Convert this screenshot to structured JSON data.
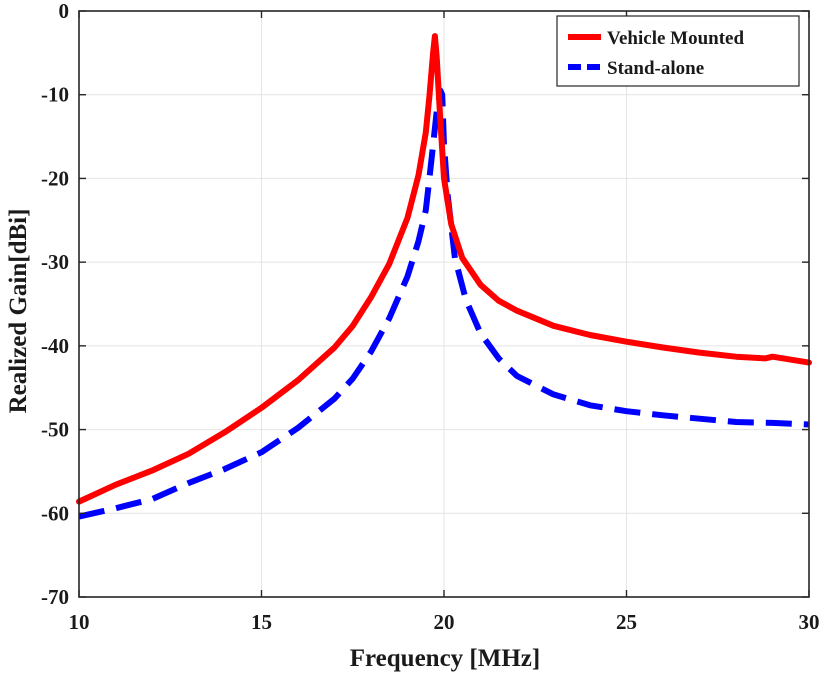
{
  "chart_data": {
    "type": "line",
    "xlabel": "Frequency [MHz]",
    "ylabel": "Realized Gain[dBi]",
    "xlim": [
      10,
      30
    ],
    "ylim": [
      -70,
      0
    ],
    "xticks": [
      10,
      15,
      20,
      25,
      30
    ],
    "yticks": [
      0,
      -10,
      -20,
      -30,
      -40,
      -50,
      -60,
      -70
    ],
    "xtick_labels": [
      "10",
      "15",
      "20",
      "25",
      "30"
    ],
    "ytick_labels": [
      "0",
      "-10",
      "-20",
      "-30",
      "-40",
      "-50",
      "-60",
      "-70"
    ],
    "grid": true,
    "legend_position": "top-right",
    "series": [
      {
        "name": "Vehicle Mounted",
        "color": "#ff0000",
        "style": "solid",
        "x": [
          10,
          11,
          12,
          13,
          14,
          15,
          16,
          17,
          17.5,
          18,
          18.5,
          19,
          19.3,
          19.5,
          19.6,
          19.7,
          19.75,
          19.8,
          19.9,
          20,
          20.2,
          20.5,
          21,
          21.5,
          22,
          23,
          24,
          25,
          26,
          27,
          28,
          28.8,
          29,
          30
        ],
        "y": [
          -58.6,
          -56.6,
          -54.9,
          -52.9,
          -50.3,
          -47.4,
          -44.1,
          -40.2,
          -37.6,
          -34.2,
          -30.2,
          -24.7,
          -19.6,
          -14.5,
          -10.2,
          -5.0,
          -3.0,
          -5.5,
          -13.0,
          -20.0,
          -25.5,
          -29.5,
          -32.7,
          -34.6,
          -35.8,
          -37.6,
          -38.7,
          -39.5,
          -40.2,
          -40.8,
          -41.3,
          -41.5,
          -41.3,
          -42.0
        ]
      },
      {
        "name": "Stand-alone",
        "color": "#0000ff",
        "style": "dashed",
        "x": [
          10,
          11,
          12,
          13,
          14,
          15,
          16,
          17,
          17.5,
          18,
          18.5,
          19,
          19.3,
          19.5,
          19.6,
          19.7,
          19.8,
          19.9,
          19.95,
          20,
          20.1,
          20.3,
          20.6,
          21,
          21.5,
          22,
          23,
          24,
          25,
          26,
          27,
          28,
          29,
          30
        ],
        "y": [
          -60.4,
          -59.4,
          -58.3,
          -56.4,
          -54.7,
          -52.7,
          -49.8,
          -46.3,
          -43.9,
          -40.7,
          -36.7,
          -31.7,
          -27.5,
          -23.8,
          -20.0,
          -16.0,
          -12.0,
          -9.5,
          -10.0,
          -16.0,
          -22.0,
          -29.5,
          -34.5,
          -38.5,
          -41.5,
          -43.6,
          -45.8,
          -47.1,
          -47.8,
          -48.3,
          -48.7,
          -49.1,
          -49.2,
          -49.4
        ]
      }
    ]
  }
}
